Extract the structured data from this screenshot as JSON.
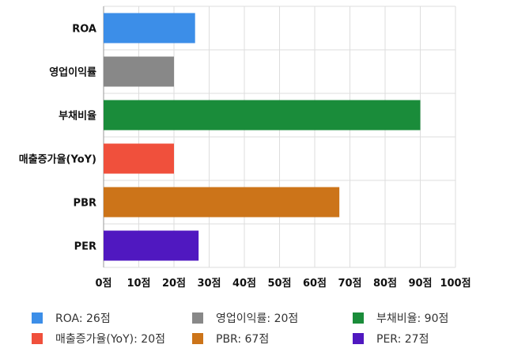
{
  "chart_data": {
    "type": "bar",
    "orientation": "horizontal",
    "categories": [
      "ROA",
      "영업이익률",
      "부채비율",
      "매출증가율(YoY)",
      "PBR",
      "PER"
    ],
    "values": [
      26,
      20,
      90,
      20,
      67,
      27
    ],
    "colors": [
      "#3c8ee8",
      "#888888",
      "#1a8c3a",
      "#f0503c",
      "#cc7419",
      "#5018c0"
    ],
    "xlim": [
      0,
      100
    ],
    "xticks": [
      "0점",
      "10점",
      "20점",
      "30점",
      "40점",
      "50점",
      "60점",
      "70점",
      "80점",
      "90점",
      "100점"
    ],
    "grid": true,
    "legend_placement": "bottom",
    "legend": [
      "ROA: 26점",
      "영업이익률: 20점",
      "부채비율: 90점",
      "매출증가율(YoY): 20점",
      "PBR: 67점",
      "PER: 27점"
    ]
  }
}
